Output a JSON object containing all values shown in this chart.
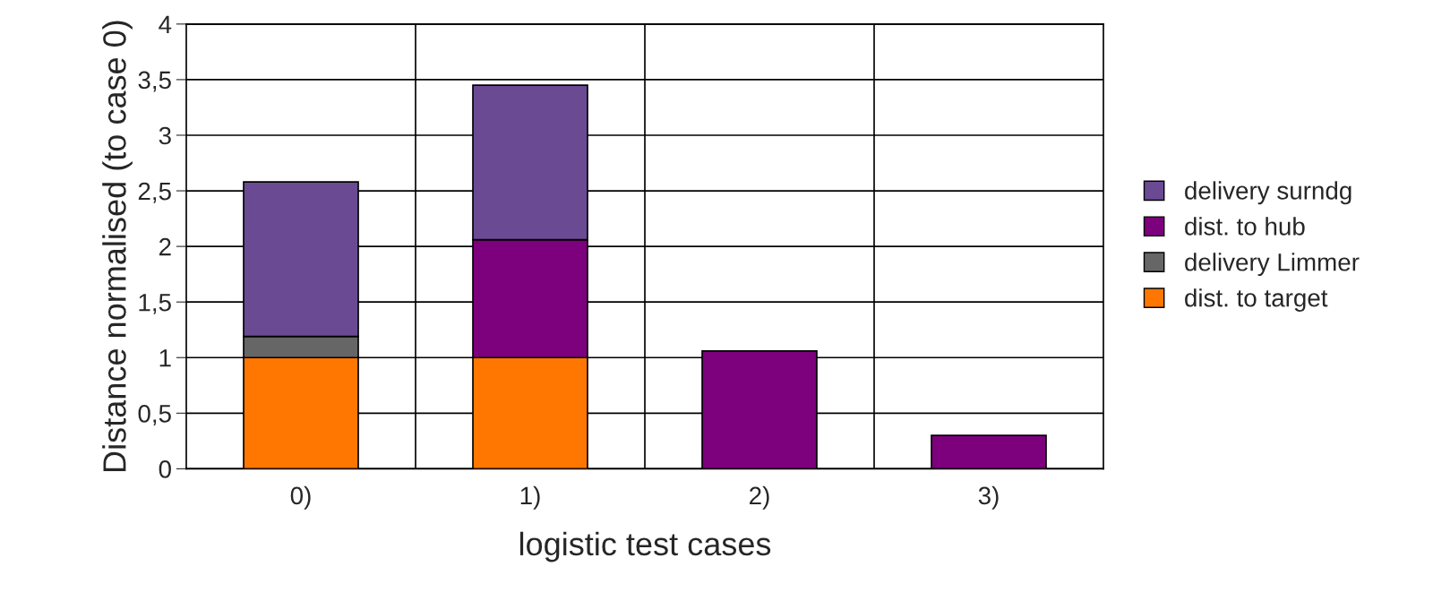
{
  "chart_data": {
    "type": "bar",
    "stacked": true,
    "xlabel": "logistic test cases",
    "ylabel": "Distance normalised (to case 0)",
    "categories": [
      "0)",
      "1)",
      "2)",
      "3)"
    ],
    "series": [
      {
        "name": "dist. to target",
        "color": "#ff7700",
        "values": [
          1.0,
          1.0,
          null,
          null
        ]
      },
      {
        "name": "delivery Limmer",
        "color": "#666666",
        "values": [
          0.19,
          null,
          null,
          null
        ]
      },
      {
        "name": "dist. to hub",
        "color": "#7d007d",
        "values": [
          null,
          1.06,
          1.06,
          0.3
        ]
      },
      {
        "name": "delivery surndg",
        "color": "#6b4a94",
        "values": [
          1.39,
          1.39,
          null,
          null
        ]
      }
    ],
    "ylim": [
      0,
      4
    ],
    "yticks": [
      0,
      {
        "value": 0.5,
        "label": "0,5"
      },
      1,
      {
        "value": 1.5,
        "label": "1,5"
      },
      2,
      {
        "value": 2.5,
        "label": "2,5"
      },
      3,
      {
        "value": 3.5,
        "label": "3,5"
      },
      4
    ],
    "grid": true,
    "legend": "right"
  }
}
